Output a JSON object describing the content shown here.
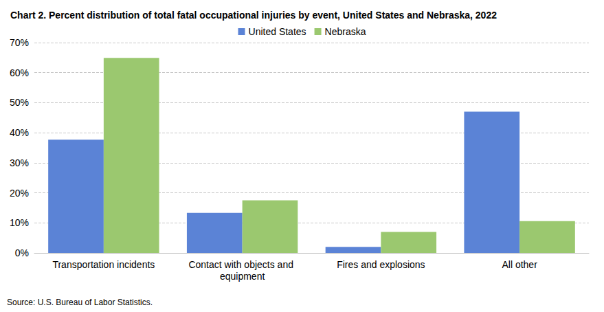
{
  "chart_data": {
    "type": "bar",
    "title": "Chart 2. Percent distribution of total fatal occupational injuries by event, United States and Nebraska, 2022",
    "source": "Source: U.S. Bureau of Labor Statistics.",
    "categories": [
      "Transportation incidents",
      "Contact with objects and equipment",
      "Fires and explosions",
      "All other"
    ],
    "series": [
      {
        "name": "United States",
        "color": "#5b83d6",
        "values": [
          37.7,
          13.3,
          2.0,
          47.0
        ]
      },
      {
        "name": "Nebraska",
        "color": "#9bc86f",
        "values": [
          64.9,
          17.5,
          7.0,
          10.6
        ]
      }
    ],
    "ylim": [
      0,
      70
    ],
    "yticks": [
      {
        "value": 0,
        "label": "0%"
      },
      {
        "value": 10,
        "label": "10%"
      },
      {
        "value": 20,
        "label": "20%"
      },
      {
        "value": 30,
        "label": "30%"
      },
      {
        "value": 40,
        "label": "40%"
      },
      {
        "value": 50,
        "label": "50%"
      },
      {
        "value": 60,
        "label": "60%"
      },
      {
        "value": 70,
        "label": "70%"
      }
    ],
    "grid": true,
    "legend": "top"
  }
}
